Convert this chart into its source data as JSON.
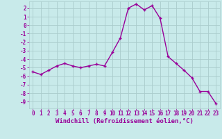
{
  "x": [
    0,
    1,
    2,
    3,
    4,
    5,
    6,
    7,
    8,
    9,
    10,
    11,
    12,
    13,
    14,
    15,
    16,
    17,
    18,
    19,
    20,
    21,
    22,
    23
  ],
  "y": [
    -5.5,
    -5.8,
    -5.3,
    -4.8,
    -4.5,
    -4.8,
    -5.0,
    -4.8,
    -4.6,
    -4.8,
    -3.2,
    -1.5,
    2.0,
    2.5,
    1.8,
    2.3,
    0.8,
    -3.7,
    -4.5,
    -5.3,
    -6.2,
    -7.8,
    -7.8,
    -9.2
  ],
  "line_color": "#990099",
  "marker": "+",
  "markersize": 3,
  "linewidth": 1.0,
  "bg_color": "#c8eaea",
  "grid_color": "#aacccc",
  "xlabel": "Windchill (Refroidissement éolien,°C)",
  "xlabel_fontsize": 6.5,
  "tick_fontsize": 5.5,
  "xlim": [
    -0.5,
    23.5
  ],
  "ylim": [
    -9.8,
    2.8
  ],
  "yticks": [
    2,
    1,
    0,
    -1,
    -2,
    -3,
    -4,
    -5,
    -6,
    -7,
    -8,
    -9
  ],
  "xticks": [
    0,
    1,
    2,
    3,
    4,
    5,
    6,
    7,
    8,
    9,
    10,
    11,
    12,
    13,
    14,
    15,
    16,
    17,
    18,
    19,
    20,
    21,
    22,
    23
  ]
}
